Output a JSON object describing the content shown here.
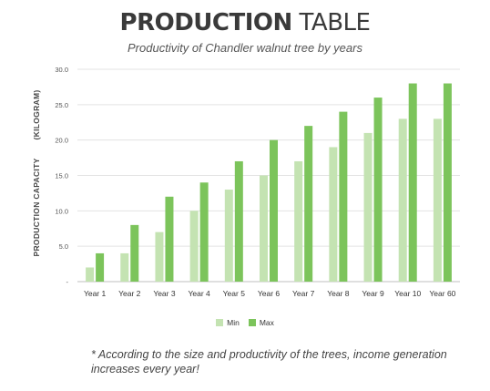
{
  "title": {
    "bold": "PRODUCTION",
    "light": "TABLE"
  },
  "subtitle": "Productivity of Chandler walnut tree by years",
  "note": "* According to the size and productivity of the trees, income generation increases every year!",
  "colors": {
    "min": "#c4e3b2",
    "max": "#7cc45b"
  },
  "chart_data": {
    "type": "bar",
    "title": "",
    "ylabel_main": "PRODUCTION CAPACITY",
    "ylabel_unit": "(KILOGRAM)",
    "xlabel": "",
    "ylim": [
      0,
      30
    ],
    "yticks": [
      "30.0",
      "25.0",
      "20.0",
      "15.0",
      "10.0",
      "5.0",
      "-"
    ],
    "categories": [
      "Year 1",
      "Year 2",
      "Year 3",
      "Year 4",
      "Year 5",
      "Year 6",
      "Year 7",
      "Year 8",
      "Year 9",
      "Year 10",
      "Year 60"
    ],
    "series": [
      {
        "name": "Min",
        "values": [
          2,
          4,
          7,
          10,
          13,
          15,
          17,
          19,
          21,
          23,
          23
        ]
      },
      {
        "name": "Max",
        "values": [
          4,
          8,
          12,
          14,
          17,
          20,
          22,
          24,
          26,
          28,
          28
        ]
      }
    ],
    "grid": "horizontal",
    "legend": "bottom"
  }
}
